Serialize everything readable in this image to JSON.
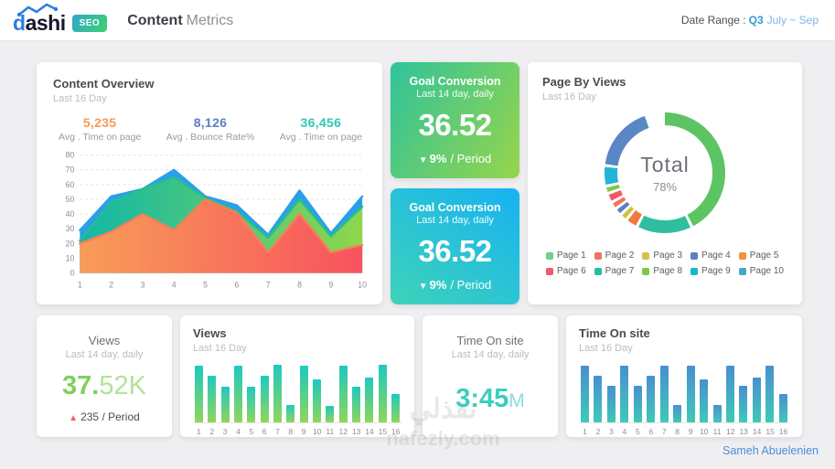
{
  "header": {
    "brand_d": "d",
    "brand_rest": "ashi",
    "badge": "SEO",
    "title_bold": "Content",
    "title_light": "Metrics",
    "date_label": "Date Range :",
    "date_quarter": "Q3",
    "date_range": "July ~ Sep"
  },
  "colors": {
    "badge_gradient": {
      "angle": "120deg",
      "from": "#2fa8c9",
      "to": "#3ed06e"
    },
    "goal_green_gradient": {
      "angle": "120deg",
      "from": "#2fc39b",
      "to": "#97d54b"
    },
    "goal_blue_gradient": {
      "angle": "35deg",
      "from": "#3ed3b9",
      "to": "#17b2f2"
    },
    "views_bar_top": "#1ec9c0",
    "views_bar_bottom": "#8ed65a",
    "time_bar_top": "#4a8fd0",
    "time_bar_bottom": "#3ec9b8",
    "donut_grad_from": "#2fbfa5",
    "donut_grad_to": "#5b85c7"
  },
  "overview": {
    "title": "Content Overview",
    "subtitle": "Last 16 Day",
    "stats": [
      {
        "value": "5,235",
        "label": "Avg . Time on page",
        "color": "#f59a57"
      },
      {
        "value": "8,126",
        "label": "Avg . Bounce Rate%",
        "color": "#5b7fc0"
      },
      {
        "value": "36,456",
        "label": "Avg . Time on page",
        "color": "#2ec5b6"
      }
    ]
  },
  "goal_cards": [
    {
      "title": "Goal Conversion",
      "subtitle": "Last 14 day, daily",
      "value": "36.52",
      "arrow": "▼",
      "delta": "9%",
      "period": "/ Period"
    },
    {
      "title": "Goal Conversion",
      "subtitle": "Last 14 day, daily",
      "value": "36.52",
      "arrow": "▼",
      "delta": "9%",
      "period": "/ Period"
    }
  ],
  "donut_card": {
    "title": "Page By Views",
    "subtitle": "Last 16 Day",
    "center_label": "Total",
    "center_value": "78%"
  },
  "views_stat": {
    "title": "Views",
    "subtitle": "Last 14 day, daily",
    "value_bold": "37.",
    "value_light": "52K",
    "value_color_bold": "#7ed15c",
    "value_color_light": "#b3e297",
    "arrow": "▲",
    "arrow_color": "#f0626e",
    "delta": "235",
    "period": "/ Period"
  },
  "time_stat": {
    "title": "Time On site",
    "subtitle": "Last 14 day, daily",
    "value_bold": "3:45",
    "unit": "M",
    "value_color": "#3bcdc0",
    "unit_color": "#8adfd6"
  },
  "author": "Sameh Abuelenien",
  "watermark": {
    "arabic": "نفذلي",
    "domain": "nafezly.com"
  },
  "chart_data": [
    {
      "type": "area",
      "title": "Content Overview",
      "x": [
        1,
        2,
        3,
        4,
        5,
        6,
        7,
        8,
        9,
        10
      ],
      "ylim": [
        0,
        80
      ],
      "yticks": [
        0,
        10,
        20,
        30,
        40,
        50,
        60,
        70,
        80
      ],
      "grid": "dashed-horizontal",
      "legend_position": "none",
      "series": [
        {
          "name": "blue",
          "stroke": "#2b9fe9",
          "fill_from": "#2b9fe9",
          "fill_to": "#2b9fe9",
          "values": [
            29,
            52,
            57,
            70,
            52,
            46,
            26,
            56,
            27,
            52
          ]
        },
        {
          "name": "green",
          "stroke": "#27bf8d",
          "fill_from": "#0fb8a8",
          "fill_to": "#90d64c",
          "values": [
            22,
            48,
            57,
            65,
            51,
            42,
            24,
            50,
            25,
            45
          ]
        },
        {
          "name": "orange",
          "stroke": "#f87d58",
          "fill_from": "#f89d58",
          "fill_to": "#f8525e",
          "values": [
            20,
            28,
            40,
            29,
            50,
            41,
            14,
            40,
            14,
            19
          ]
        }
      ]
    },
    {
      "type": "pie",
      "title": "Page By Views",
      "center_label": "Total",
      "center_value": "78%",
      "legend_position": "bottom",
      "legend": [
        {
          "label": "Page 1",
          "color": "#6fcf8f"
        },
        {
          "label": "Page 2",
          "color": "#ef7360"
        },
        {
          "label": "Page 3",
          "color": "#d4c14e"
        },
        {
          "label": "Page 4",
          "color": "#5b7fc0"
        },
        {
          "label": "Page 5",
          "color": "#f2903f"
        },
        {
          "label": "Page 6",
          "color": "#ef5a6e"
        },
        {
          "label": "Page 7",
          "color": "#23bfa2"
        },
        {
          "label": "Page 8",
          "color": "#7cc94e"
        },
        {
          "label": "Page 9",
          "color": "#17b5cf"
        },
        {
          "label": "Page 10",
          "color": "#4aa3c9"
        }
      ],
      "slices": [
        {
          "label": "Page 1",
          "value": 43,
          "color": "#5dc464"
        },
        {
          "label": "Page 7",
          "value": 15,
          "color": "#2fbf9e"
        },
        {
          "label": "Page 5",
          "value": 3.3,
          "color": "#f2793f"
        },
        {
          "label": "Page 3",
          "value": 2,
          "color": "#cfc13f"
        },
        {
          "label": "Page 4",
          "value": 2,
          "color": "#5a7fc4"
        },
        {
          "label": "Page 2",
          "value": 2,
          "color": "#f2735f"
        },
        {
          "label": "Page 6",
          "value": 2.5,
          "color": "#f05a66"
        },
        {
          "label": "Page 8",
          "value": 2,
          "color": "#7cc94e"
        },
        {
          "label": "Page 9",
          "value": 5.5,
          "color": "#24b4d8"
        },
        {
          "label": "Page 10",
          "value": 18,
          "color": "gradient"
        }
      ]
    },
    {
      "type": "bar",
      "title": "Views",
      "subtitle": "Last 16 Day",
      "categories": [
        1,
        2,
        3,
        4,
        5,
        6,
        7,
        8,
        9,
        10,
        11,
        12,
        13,
        14,
        15,
        16
      ],
      "values": [
        95,
        78,
        60,
        95,
        60,
        78,
        97,
        30,
        95,
        72,
        28,
        95,
        60,
        75,
        97,
        47
      ],
      "ylim": [
        0,
        100
      ],
      "grid": "off",
      "legend_position": "none"
    },
    {
      "type": "bar",
      "title": "Time On site",
      "subtitle": "Last 16 Day",
      "categories": [
        1,
        2,
        3,
        4,
        5,
        6,
        7,
        8,
        9,
        10,
        11,
        12,
        13,
        14,
        15,
        16
      ],
      "values": [
        95,
        78,
        62,
        95,
        62,
        78,
        95,
        30,
        95,
        73,
        30,
        95,
        62,
        76,
        95,
        48
      ],
      "ylim": [
        0,
        100
      ],
      "grid": "off",
      "legend_position": "none"
    }
  ]
}
